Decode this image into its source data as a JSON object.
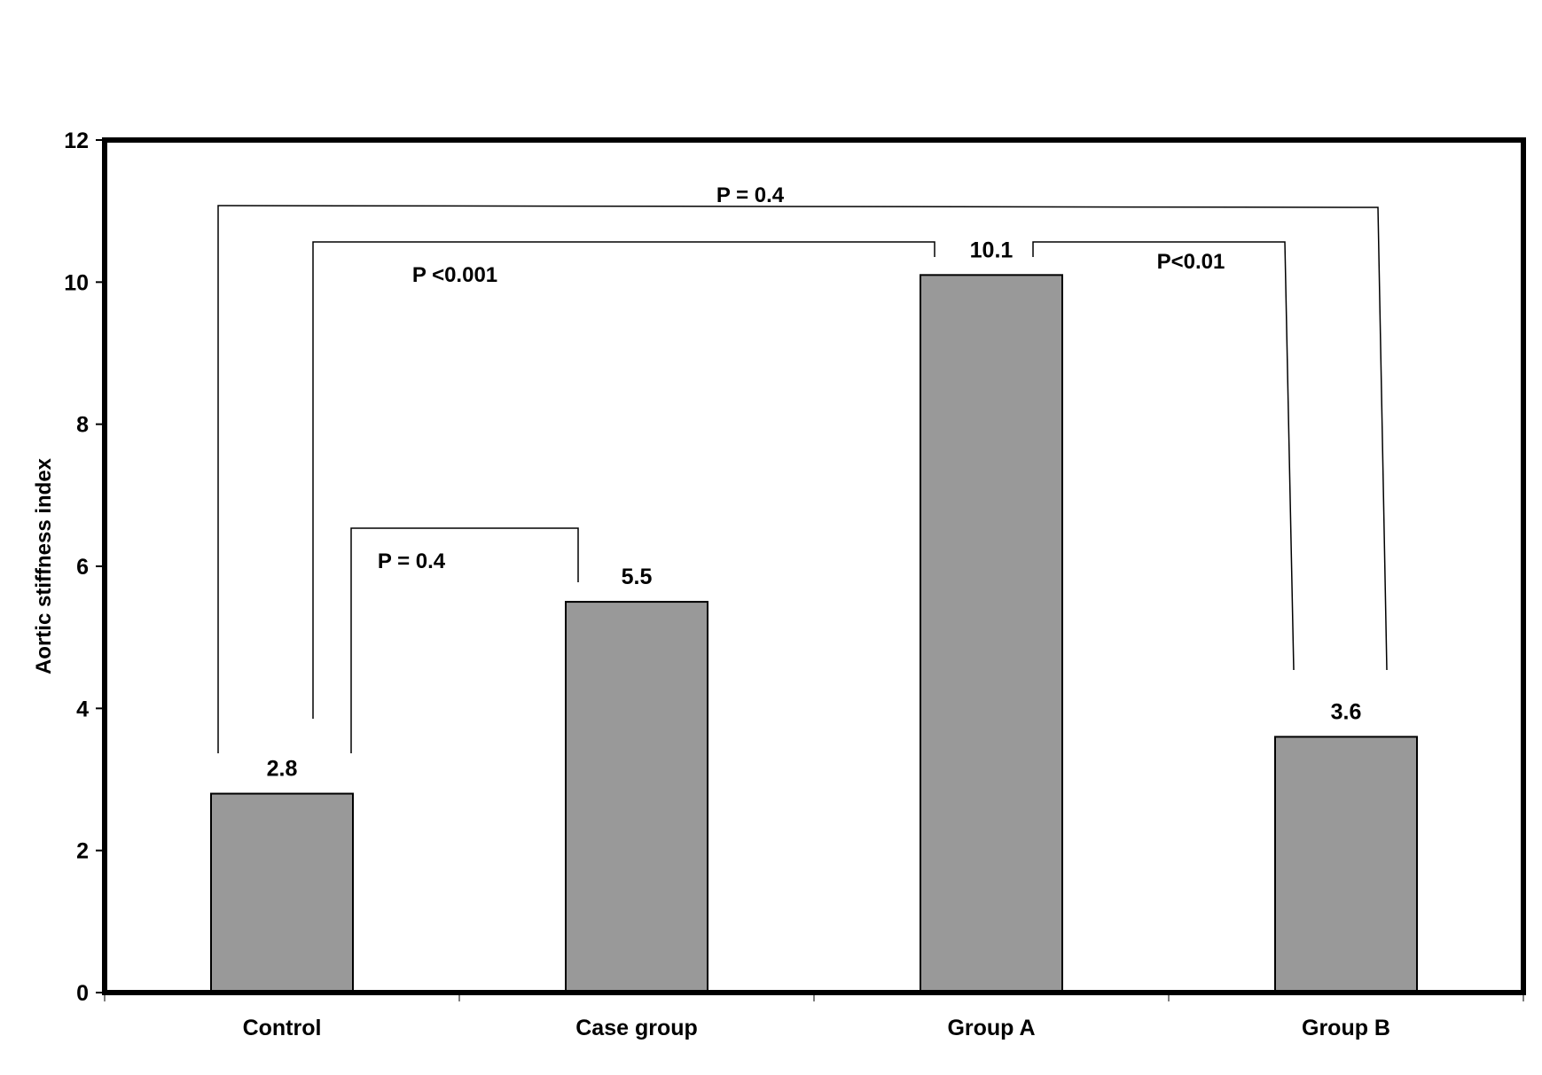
{
  "chart_data": {
    "type": "bar",
    "categories": [
      "Control",
      "Case group",
      "Group A",
      "Group B"
    ],
    "values": [
      2.8,
      5.5,
      10.1,
      3.6
    ],
    "data_labels": [
      "2.8",
      "5.5",
      "10.1",
      "3.6"
    ],
    "title": "",
    "xlabel": "",
    "ylabel": "Aortic stiffness index",
    "ylim": [
      0,
      12
    ],
    "yticks": [
      0,
      2,
      4,
      6,
      8,
      10,
      12
    ],
    "grid": false,
    "legend": "none",
    "bar_color": "#999999",
    "annotations": [
      {
        "text": "P = 0.4",
        "from": "Control",
        "to": "Group B"
      },
      {
        "text": "P <0.001",
        "from": "Control",
        "to": "Group A"
      },
      {
        "text": "P<0.01",
        "from": "Group A",
        "to": "Group B"
      },
      {
        "text": "P = 0.4",
        "from": "Control",
        "to": "Case group"
      }
    ]
  }
}
